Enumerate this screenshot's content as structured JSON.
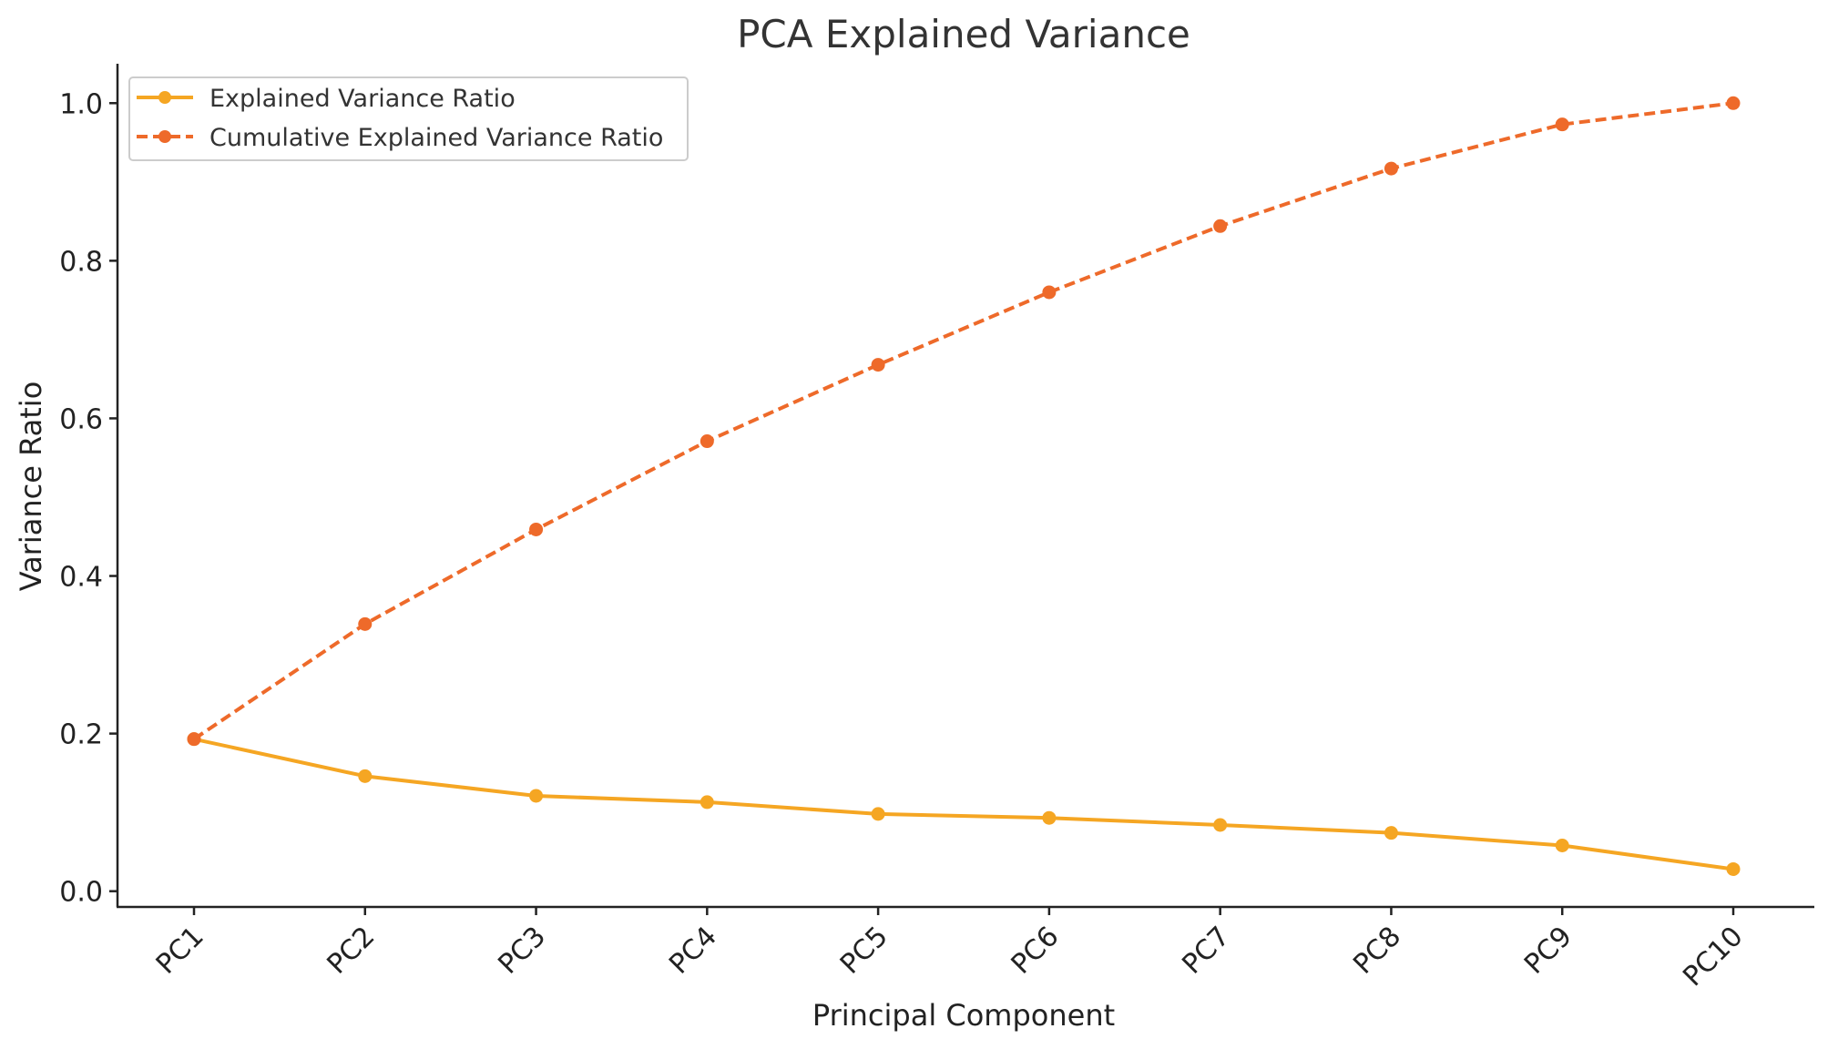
{
  "chart_data": {
    "type": "line",
    "title": "PCA Explained Variance",
    "xlabel": "Principal Component",
    "ylabel": "Variance Ratio",
    "categories": [
      "PC1",
      "PC2",
      "PC3",
      "PC4",
      "PC5",
      "PC6",
      "PC7",
      "PC8",
      "PC9",
      "PC10"
    ],
    "ylim": [
      -0.02,
      1.05
    ],
    "yticks": [
      0.0,
      0.2,
      0.4,
      0.6,
      0.8,
      1.0
    ],
    "ytick_labels": [
      "0.0",
      "0.2",
      "0.4",
      "0.6",
      "0.8",
      "1.0"
    ],
    "grid": false,
    "legend_position": "top-left",
    "series": [
      {
        "name": "Explained Variance Ratio",
        "color": "#f5a623",
        "style": "solid",
        "values": [
          0.193,
          0.146,
          0.121,
          0.113,
          0.098,
          0.093,
          0.084,
          0.074,
          0.058,
          0.028
        ]
      },
      {
        "name": "Cumulative Explained Variance Ratio",
        "color": "#ee6a2a",
        "style": "dashed",
        "values": [
          0.193,
          0.339,
          0.459,
          0.571,
          0.668,
          0.76,
          0.844,
          0.917,
          0.973,
          1.0
        ]
      }
    ]
  }
}
